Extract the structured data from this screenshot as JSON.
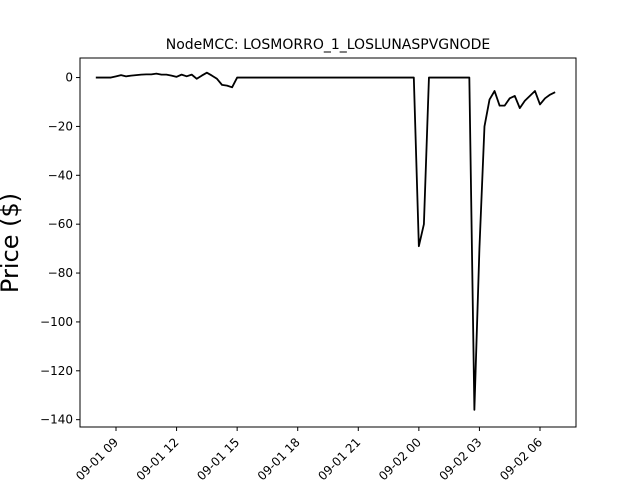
{
  "chart_data": {
    "type": "line",
    "title": "NodeMCC: LOSMORRO_1_LOSLUNASPVGNODE",
    "xlabel": "",
    "ylabel": "Price ($)",
    "x_unit": "datetime",
    "xlim": [
      "2023-09-01 07:13",
      "2023-09-02 07:47"
    ],
    "ylim": [
      -143,
      8
    ],
    "x_ticks": [
      {
        "value": "2023-09-01 09:00",
        "label": "09-01 09"
      },
      {
        "value": "2023-09-01 12:00",
        "label": "09-01 12"
      },
      {
        "value": "2023-09-01 15:00",
        "label": "09-01 15"
      },
      {
        "value": "2023-09-01 18:00",
        "label": "09-01 18"
      },
      {
        "value": "2023-09-01 21:00",
        "label": "09-01 21"
      },
      {
        "value": "2023-09-02 00:00",
        "label": "09-02 00"
      },
      {
        "value": "2023-09-02 03:00",
        "label": "09-02 03"
      },
      {
        "value": "2023-09-02 06:00",
        "label": "09-02 06"
      }
    ],
    "y_ticks": [
      0,
      -20,
      -40,
      -60,
      -80,
      -100,
      -120,
      -140
    ],
    "grid": false,
    "line_color": "#000000",
    "series": [
      {
        "x": [
          "2023-09-01 08:00",
          "2023-09-01 08:45",
          "2023-09-01 09:00",
          "2023-09-01 09:15",
          "2023-09-01 09:30",
          "2023-09-01 09:45",
          "2023-09-01 10:00",
          "2023-09-01 10:15",
          "2023-09-01 10:30",
          "2023-09-01 10:45",
          "2023-09-01 11:00",
          "2023-09-01 11:15",
          "2023-09-01 11:30",
          "2023-09-01 11:45",
          "2023-09-01 12:00",
          "2023-09-01 12:15",
          "2023-09-01 12:30",
          "2023-09-01 12:45",
          "2023-09-01 13:00",
          "2023-09-01 13:15",
          "2023-09-01 13:30",
          "2023-09-01 13:45",
          "2023-09-01 14:00",
          "2023-09-01 14:15",
          "2023-09-01 14:30",
          "2023-09-01 14:45",
          "2023-09-01 15:00",
          "2023-09-01 16:00",
          "2023-09-01 18:00",
          "2023-09-01 20:00",
          "2023-09-01 22:00",
          "2023-09-01 23:45",
          "2023-09-02 00:00",
          "2023-09-02 00:15",
          "2023-09-02 00:30",
          "2023-09-02 01:00",
          "2023-09-02 02:00",
          "2023-09-02 02:30",
          "2023-09-02 02:45",
          "2023-09-02 03:00",
          "2023-09-02 03:15",
          "2023-09-02 03:30",
          "2023-09-02 03:45",
          "2023-09-02 04:00",
          "2023-09-02 04:15",
          "2023-09-02 04:30",
          "2023-09-02 04:45",
          "2023-09-02 05:00",
          "2023-09-02 05:15",
          "2023-09-02 05:30",
          "2023-09-02 05:45",
          "2023-09-02 06:00",
          "2023-09-02 06:15",
          "2023-09-02 06:30",
          "2023-09-02 06:45"
        ],
        "values": [
          0,
          0,
          0.5,
          1,
          0.5,
          0.8,
          1,
          1.2,
          1.3,
          1.3,
          1.6,
          1.2,
          1.2,
          0.8,
          0.3,
          1.2,
          0.5,
          1.2,
          -0.5,
          0.8,
          2,
          0.8,
          -0.5,
          -3,
          -3.3,
          -4,
          0,
          0,
          0,
          0,
          0,
          0,
          -69,
          -60,
          0,
          0,
          0,
          0,
          -136,
          -70,
          -20,
          -9,
          -5.5,
          -11.5,
          -11.5,
          -8.5,
          -7.5,
          -12.5,
          -9.5,
          -7.5,
          -5.5,
          -11,
          -8.5,
          -7,
          -6
        ]
      }
    ]
  }
}
